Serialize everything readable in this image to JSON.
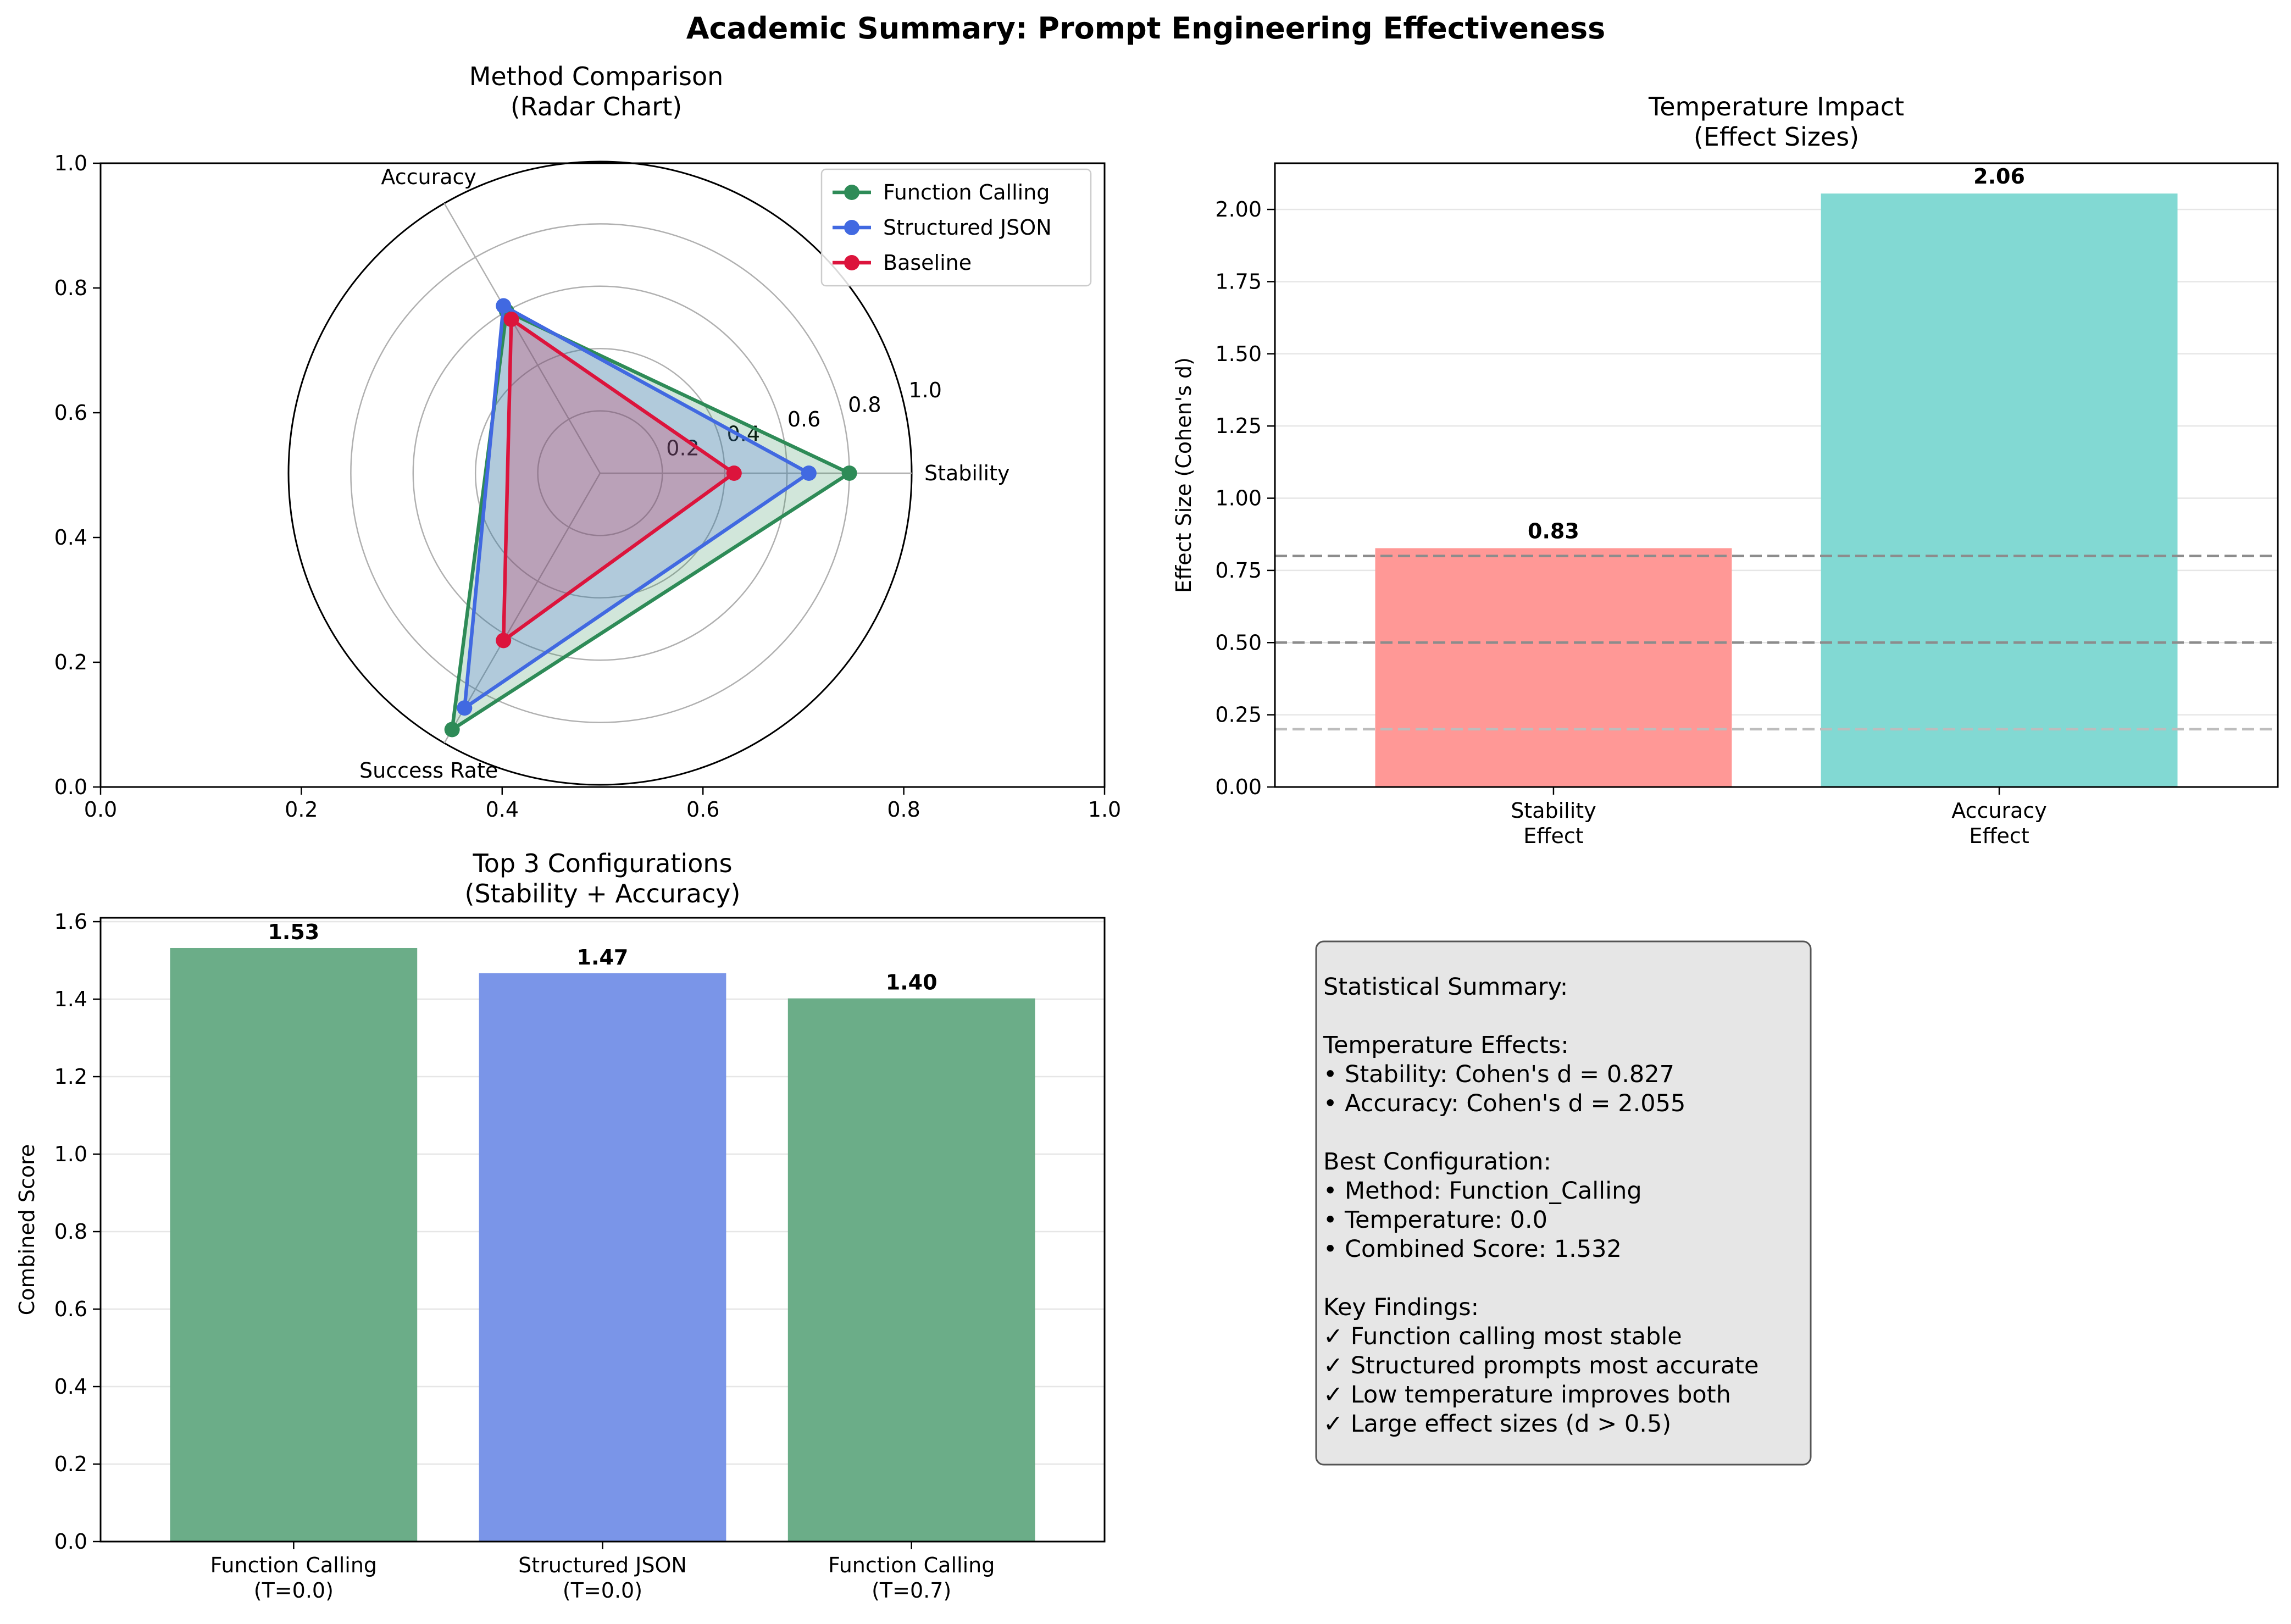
{
  "figure": {
    "title": "Academic Summary: Prompt Engineering Effectiveness"
  },
  "radar": {
    "title_lines": [
      "Method Comparison",
      "(Radar Chart)"
    ],
    "outer_ticks": [
      "0.0",
      "0.2",
      "0.4",
      "0.6",
      "0.8",
      "1.0"
    ],
    "radial_ticks": [
      "0.2",
      "0.4",
      "0.6",
      "0.8",
      "1.0"
    ],
    "legend_placement": "upper-right",
    "grid": true
  },
  "temperature": {
    "title_lines": [
      "Temperature Impact",
      "(Effect Sizes)"
    ],
    "ylabel": "Effect Size (Cohen's d)",
    "yticks": [
      "0.00",
      "0.25",
      "0.50",
      "0.75",
      "1.00",
      "1.25",
      "1.50",
      "1.75",
      "2.00"
    ],
    "categories": [
      [
        "Stability",
        "Effect"
      ],
      [
        "Accuracy",
        "Effect"
      ]
    ],
    "value_labels": [
      "0.83",
      "2.06"
    ],
    "colors": [
      "#FF9896",
      "#82D9D3"
    ],
    "reference_lines": [
      0.2,
      0.5,
      0.8
    ]
  },
  "top3": {
    "title_lines": [
      "Top 3 Configurations",
      "(Stability + Accuracy)"
    ],
    "ylabel": "Combined Score",
    "yticks": [
      "0.0",
      "0.2",
      "0.4",
      "0.6",
      "0.8",
      "1.0",
      "1.2",
      "1.4",
      "1.6"
    ],
    "categories": [
      [
        "Function Calling",
        "(T=0.0)"
      ],
      [
        "Structured JSON",
        "(T=0.0)"
      ],
      [
        "Function Calling",
        "(T=0.7)"
      ]
    ],
    "value_labels": [
      "1.53",
      "1.47",
      "1.40"
    ],
    "colors": [
      "#6BAD88",
      "#7A95E8",
      "#6BAD88"
    ]
  },
  "summary": {
    "lines": [
      "Statistical Summary:",
      "",
      "Temperature Effects:",
      "• Stability: Cohen's d = 0.827",
      "• Accuracy: Cohen's d = 2.055",
      "",
      "Best Configuration:",
      "• Method: Function_Calling",
      "• Temperature: 0.0",
      "• Combined Score: 1.532",
      "",
      "Key Findings:",
      "✓ Function calling most stable",
      "✓ Structured prompts most accurate",
      "✓ Low temperature improves both",
      "✓ Large effect sizes (d > 0.5)"
    ]
  },
  "chart_data": [
    {
      "type": "radar",
      "title": "Method Comparison\n(Radar Chart)",
      "categories": [
        "Stability",
        "Accuracy",
        "Success Rate"
      ],
      "rlim": [
        0,
        1.0
      ],
      "series": [
        {
          "name": "Function Calling",
          "color": "#2E8B57",
          "values": [
            0.8,
            0.6,
            0.95
          ]
        },
        {
          "name": "Structured JSON",
          "color": "#4169E1",
          "values": [
            0.67,
            0.62,
            0.87
          ]
        },
        {
          "name": "Baseline",
          "color": "#DC143C",
          "values": [
            0.43,
            0.57,
            0.62
          ]
        }
      ]
    },
    {
      "type": "bar",
      "title": "Temperature Impact\n(Effect Sizes)",
      "categories": [
        "Stability Effect",
        "Accuracy Effect"
      ],
      "values": [
        0.827,
        2.055
      ],
      "ylabel": "Effect Size (Cohen's d)",
      "ylim": [
        0,
        2.16
      ]
    },
    {
      "type": "bar",
      "title": "Top 3 Configurations\n(Stability + Accuracy)",
      "categories": [
        "Function Calling (T=0.0)",
        "Structured JSON (T=0.0)",
        "Function Calling (T=0.7)"
      ],
      "values": [
        1.532,
        1.467,
        1.402
      ],
      "ylabel": "Combined Score",
      "ylim": [
        0,
        1.61
      ]
    }
  ]
}
